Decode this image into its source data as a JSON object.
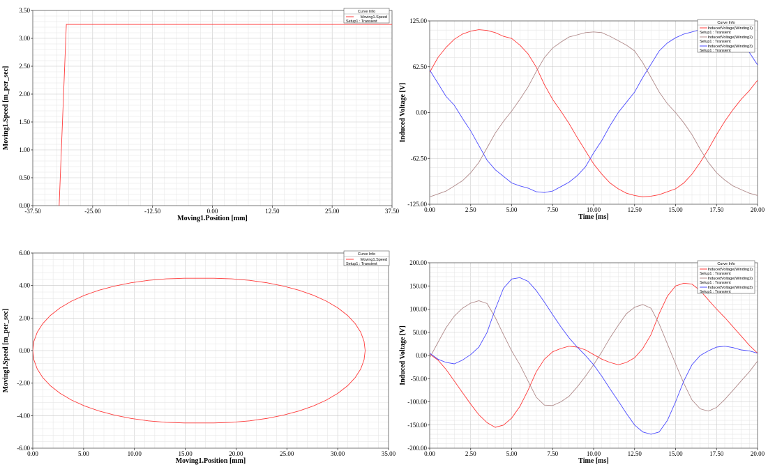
{
  "chart_data": [
    {
      "id": "tl",
      "type": "line",
      "xlabel": "Moving1.Position [mm]",
      "ylabel": "Moving1.Speed [m_per_sec]",
      "xlim": [
        -37.5,
        37.5
      ],
      "ylim": [
        0,
        3.5
      ],
      "xticks": [
        "-37.50",
        "-25.00",
        "-12.50",
        "0.00",
        "12.50",
        "25.00",
        "37.50"
      ],
      "yticks": [
        "0.00",
        "0.50",
        "1.00",
        "1.50",
        "2.00",
        "2.50",
        "3.00",
        "3.50"
      ],
      "legend": {
        "title": "Curve Info",
        "entries": [
          {
            "name": "Moving1.Speed",
            "sub": "Setup1 : Transient",
            "color": "#ff3b3b"
          }
        ]
      },
      "series": [
        {
          "color": "#ff3b3b",
          "x": [
            -32.0,
            -30.5,
            37.5
          ],
          "y": [
            0.0,
            3.25,
            3.25
          ]
        }
      ]
    },
    {
      "id": "tr",
      "type": "line",
      "xlabel": "Time [ms]",
      "ylabel": "Induced Voltage [V]",
      "xlim": [
        0,
        20
      ],
      "ylim": [
        -125,
        125
      ],
      "xticks": [
        "0.00",
        "2.50",
        "5.00",
        "7.50",
        "10.00",
        "12.50",
        "15.00",
        "17.50",
        "20.00"
      ],
      "yticks": [
        "-125.00",
        "-62.50",
        "0.00",
        "62.50",
        "125.00"
      ],
      "legend": {
        "title": "Curve Info",
        "entries": [
          {
            "name": "InducedVoltage(Winding1)",
            "sub": "Setup1 : Transient",
            "color": "#ff3b3b"
          },
          {
            "name": "InducedVoltage(Winding2)",
            "sub": "Setup1 : Transient",
            "color": "#b08a8a"
          },
          {
            "name": "InducedVoltage(Winding3)",
            "sub": "Setup1 : Transient",
            "color": "#4b4bff"
          }
        ]
      },
      "series": [
        {
          "color": "#ff3b3b",
          "x": [
            0,
            0.5,
            1,
            1.5,
            2,
            2.5,
            3,
            3.5,
            4,
            4.5,
            5,
            5.5,
            6,
            6.5,
            7,
            7.5,
            8,
            8.5,
            9,
            9.5,
            10,
            10.5,
            11,
            11.5,
            12,
            12.5,
            13,
            13.5,
            14,
            14.5,
            15,
            15.5,
            16,
            16.5,
            17,
            17.5,
            18,
            18.5,
            19,
            19.5,
            20
          ],
          "y": [
            55,
            75,
            89,
            100,
            107,
            111,
            113,
            112,
            109,
            104,
            101,
            92,
            80,
            62,
            38,
            18,
            2,
            -15,
            -34,
            -52,
            -70,
            -84,
            -96,
            -104,
            -110,
            -113,
            -115,
            -114,
            -112,
            -108,
            -104,
            -96,
            -84,
            -68,
            -50,
            -30,
            -12,
            4,
            18,
            30,
            44
          ]
        },
        {
          "color": "#b08a8a",
          "x": [
            0,
            0.5,
            1,
            1.5,
            2,
            2.5,
            3,
            3.5,
            4,
            4.5,
            5,
            5.5,
            6,
            6.5,
            7,
            7.5,
            8,
            8.5,
            9,
            9.5,
            10,
            10.5,
            11,
            11.5,
            12,
            12.5,
            13,
            13.5,
            14,
            14.5,
            15,
            15.5,
            16,
            16.5,
            17,
            17.5,
            18,
            18.5,
            19,
            19.5,
            20
          ],
          "y": [
            -115,
            -111,
            -107,
            -100,
            -93,
            -82,
            -68,
            -48,
            -28,
            -12,
            2,
            18,
            35,
            56,
            75,
            88,
            96,
            103,
            106,
            109,
            110,
            109,
            104,
            98,
            92,
            84,
            68,
            48,
            28,
            12,
            0,
            -14,
            -30,
            -50,
            -68,
            -82,
            -92,
            -100,
            -105,
            -110,
            -113
          ]
        },
        {
          "color": "#4b4bff",
          "x": [
            0,
            0.5,
            1,
            1.5,
            2,
            2.5,
            3,
            3.5,
            4,
            4.5,
            5,
            5.5,
            6,
            6.5,
            7,
            7.5,
            8,
            8.5,
            9,
            9.5,
            10,
            10.5,
            11,
            11.5,
            12,
            12.5,
            13,
            13.5,
            14,
            14.5,
            15,
            15.5,
            16,
            16.5,
            17,
            17.5,
            18,
            18.5,
            19,
            19.5,
            20
          ],
          "y": [
            58,
            40,
            22,
            10,
            -8,
            -25,
            -45,
            -65,
            -78,
            -87,
            -96,
            -100,
            -103,
            -108,
            -109,
            -107,
            -101,
            -95,
            -86,
            -74,
            -55,
            -38,
            -18,
            0,
            14,
            28,
            48,
            66,
            84,
            95,
            102,
            107,
            110,
            113,
            115,
            115,
            110,
            103,
            95,
            82,
            65
          ]
        }
      ]
    },
    {
      "id": "bl",
      "type": "line",
      "xlabel": "Moving1.Position [mm]",
      "ylabel": "Moving1.Speed [m_per_sec]",
      "xlim": [
        0,
        35
      ],
      "ylim": [
        -6,
        6
      ],
      "xticks": [
        "0.00",
        "5.00",
        "10.00",
        "15.00",
        "20.00",
        "25.00",
        "30.00",
        "35.00"
      ],
      "yticks": [
        "-6.00",
        "-4.00",
        "-2.00",
        "0.00",
        "2.00",
        "4.00",
        "6.00"
      ],
      "legend": {
        "title": "Curve Info",
        "entries": [
          {
            "name": "Moving1.Speed",
            "sub": "Setup1 : Transient",
            "color": "#ff3b3b"
          }
        ]
      },
      "series": [
        {
          "color": "#ff3b3b",
          "x": [
            0.0,
            0.11,
            0.44,
            0.98,
            1.73,
            2.67,
            3.8,
            5.08,
            6.5,
            8.04,
            9.67,
            11.38,
            13.13,
            14.89,
            16.35,
            17.81,
            19.57,
            21.32,
            23.03,
            24.66,
            26.2,
            27.62,
            28.9,
            30.03,
            30.97,
            31.72,
            32.26,
            32.59,
            32.7,
            32.59,
            32.26,
            31.72,
            30.97,
            30.03,
            28.9,
            27.62,
            26.2,
            24.66,
            23.03,
            21.32,
            19.57,
            17.81,
            16.35,
            14.89,
            13.13,
            11.38,
            9.67,
            8.04,
            6.5,
            5.08,
            3.8,
            2.67,
            1.73,
            0.98,
            0.44,
            0.11,
            0.0
          ],
          "y": [
            0.0,
            0.57,
            1.13,
            1.66,
            2.16,
            2.62,
            3.04,
            3.4,
            3.71,
            3.97,
            4.17,
            4.32,
            4.41,
            4.45,
            4.45,
            4.45,
            4.41,
            4.32,
            4.17,
            3.97,
            3.71,
            3.4,
            3.04,
            2.62,
            2.16,
            1.66,
            1.13,
            0.57,
            0.0,
            -0.57,
            -1.13,
            -1.66,
            -2.16,
            -2.62,
            -3.04,
            -3.4,
            -3.71,
            -3.97,
            -4.17,
            -4.32,
            -4.41,
            -4.45,
            -4.45,
            -4.45,
            -4.41,
            -4.32,
            -4.17,
            -3.97,
            -3.71,
            -3.4,
            -3.04,
            -2.62,
            -2.16,
            -1.66,
            -1.13,
            -0.57,
            0.0
          ]
        }
      ]
    },
    {
      "id": "br",
      "type": "line",
      "xlabel": "Time [ms]",
      "ylabel": "Induced Voltage [V]",
      "xlim": [
        0,
        20
      ],
      "ylim": [
        -200,
        200
      ],
      "xticks": [
        "0.00",
        "2.50",
        "5.00",
        "7.50",
        "10.00",
        "12.50",
        "15.00",
        "17.50",
        "20.00"
      ],
      "yticks": [
        "-200.00",
        "-150.00",
        "-100.00",
        "-50.00",
        "0.00",
        "50.00",
        "100.00",
        "150.00",
        "200.00"
      ],
      "legend": {
        "title": "Curve Info",
        "entries": [
          {
            "name": "InducedVoltage(Winding1)",
            "sub": "Setup1 : Transient",
            "color": "#ff3b3b"
          },
          {
            "name": "InducedVoltage(Winding2)",
            "sub": "Setup1 : Transient",
            "color": "#b08a8a"
          },
          {
            "name": "InducedVoltage(Winding3)",
            "sub": "Setup1 : Transient",
            "color": "#4b4bff"
          }
        ]
      },
      "series": [
        {
          "color": "#ff3b3b",
          "x": [
            0,
            0.5,
            1,
            1.5,
            2,
            2.5,
            3,
            3.5,
            4,
            4.5,
            5,
            5.5,
            6,
            6.5,
            7,
            7.5,
            8,
            8.5,
            9,
            9.5,
            10,
            10.5,
            11,
            11.5,
            12,
            12.5,
            13,
            13.5,
            14,
            14.5,
            15,
            15.5,
            16,
            16.5,
            17,
            17.5,
            18,
            18.5,
            19,
            19.5,
            20
          ],
          "y": [
            3,
            -10,
            -30,
            -55,
            -80,
            -105,
            -128,
            -145,
            -155,
            -150,
            -135,
            -110,
            -75,
            -35,
            -8,
            8,
            15,
            20,
            18,
            12,
            2,
            -8,
            -15,
            -20,
            -15,
            -5,
            15,
            45,
            90,
            128,
            150,
            156,
            154,
            140,
            120,
            100,
            82,
            62,
            42,
            22,
            5
          ]
        },
        {
          "color": "#b08a8a",
          "x": [
            0,
            0.5,
            1,
            1.5,
            2,
            2.5,
            3,
            3.5,
            4,
            4.5,
            5,
            5.5,
            6,
            6.5,
            7,
            7.5,
            8,
            8.5,
            9,
            9.5,
            10,
            10.5,
            11,
            11.5,
            12,
            12.5,
            13,
            13.5,
            14,
            14.5,
            15,
            15.5,
            16,
            16.5,
            17,
            17.5,
            18,
            18.5,
            19,
            19.5,
            20
          ],
          "y": [
            -5,
            28,
            60,
            85,
            102,
            113,
            118,
            112,
            82,
            45,
            10,
            -20,
            -55,
            -90,
            -107,
            -108,
            -100,
            -88,
            -68,
            -45,
            -20,
            8,
            38,
            65,
            90,
            104,
            110,
            102,
            68,
            25,
            -18,
            -60,
            -96,
            -115,
            -120,
            -112,
            -95,
            -75,
            -55,
            -35,
            -12
          ]
        },
        {
          "color": "#4b4bff",
          "x": [
            0,
            0.5,
            1,
            1.5,
            2,
            2.5,
            3,
            3.5,
            4,
            4.5,
            5,
            5.5,
            6,
            6.5,
            7,
            7.5,
            8,
            8.5,
            9,
            9.5,
            10,
            10.5,
            11,
            11.5,
            12,
            12.5,
            13,
            13.5,
            14,
            14.5,
            15,
            15.5,
            16,
            16.5,
            17,
            17.5,
            18,
            18.5,
            19,
            19.5,
            20
          ],
          "y": [
            5,
            -8,
            -15,
            -18,
            -10,
            2,
            18,
            50,
            100,
            145,
            165,
            168,
            160,
            140,
            115,
            88,
            62,
            38,
            18,
            0,
            -20,
            -45,
            -72,
            -98,
            -125,
            -150,
            -165,
            -170,
            -165,
            -140,
            -100,
            -55,
            -20,
            0,
            10,
            18,
            20,
            17,
            12,
            10,
            5
          ]
        }
      ]
    }
  ]
}
